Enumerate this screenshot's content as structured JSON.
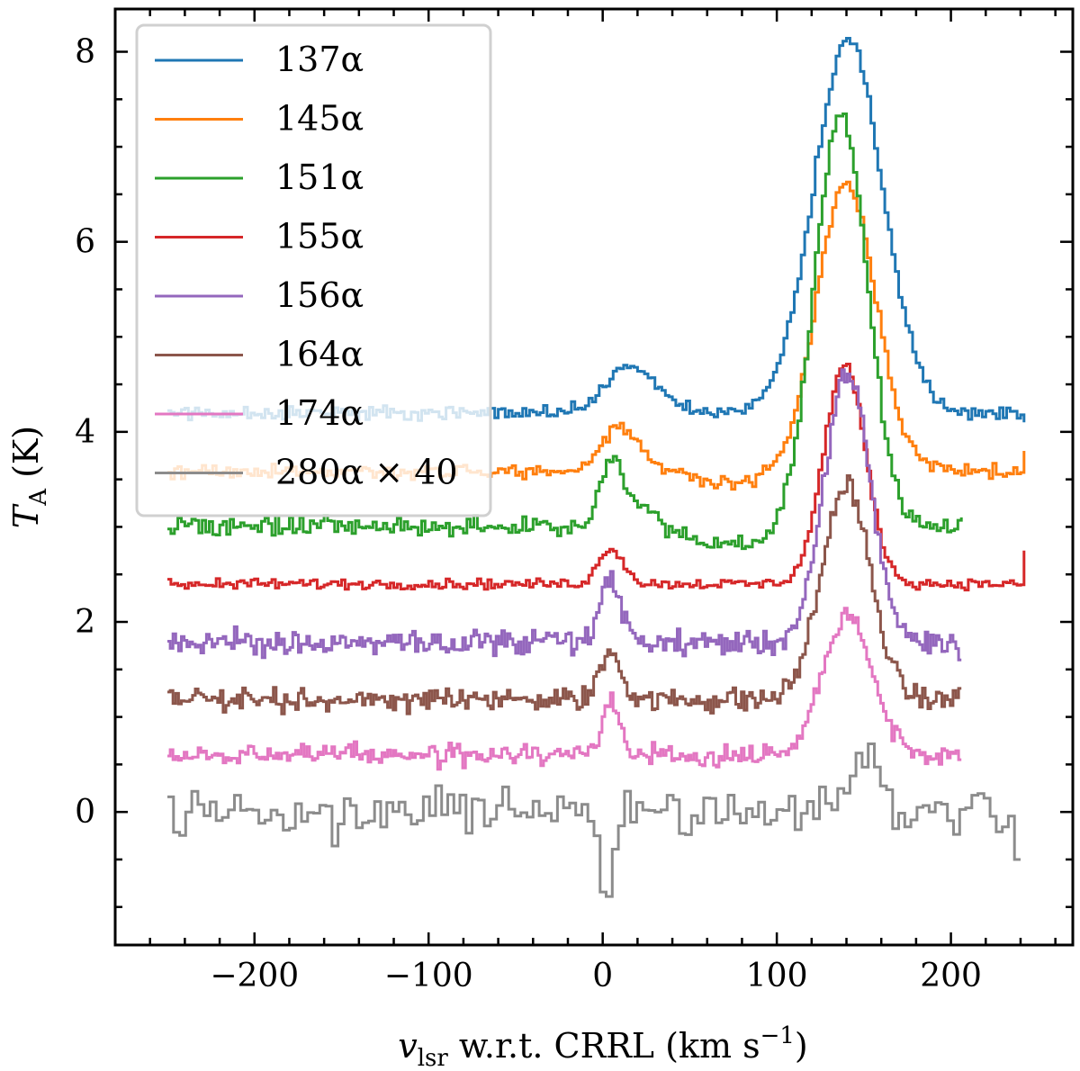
{
  "chart_data": {
    "type": "line",
    "title": "",
    "xlabel": "v_lsr w.r.t. CRRL (km s^-1)",
    "xlabel_parts": {
      "main": "v",
      "sub": "lsr",
      "rest": " w.r.t. CRRL (km s",
      "sup": "−1",
      "close": ")"
    },
    "ylabel": "T_A (K)",
    "ylabel_parts": {
      "main": "T",
      "sub": "A",
      "rest": " (K)"
    },
    "xlim": [
      -280,
      270
    ],
    "ylim": [
      -1.4,
      8.45
    ],
    "xticks": [
      -200,
      -100,
      0,
      100,
      200
    ],
    "xtick_labels": [
      "−200",
      "−100",
      "0",
      "100",
      "200"
    ],
    "yticks": [
      0,
      2,
      4,
      6,
      8
    ],
    "ytick_labels": [
      "0",
      "2",
      "4",
      "6",
      "8"
    ],
    "legend_position": "upper-left",
    "series": [
      {
        "name": "137α",
        "color": "#1f77b4",
        "baseline": 4.2,
        "noise": 0.07,
        "x_range": [
          -250,
          243
        ],
        "features": [
          {
            "center": 140,
            "sigma": 20,
            "amp": 3.9
          },
          {
            "center": 15,
            "sigma": 14,
            "amp": 0.5
          }
        ],
        "step": 2,
        "end_value": 4.1
      },
      {
        "name": "145α",
        "color": "#ff7f0e",
        "baseline": 3.58,
        "noise": 0.07,
        "x_range": [
          -250,
          243
        ],
        "features": [
          {
            "center": 139,
            "sigma": 17,
            "amp": 3.05
          },
          {
            "center": 8,
            "sigma": 10,
            "amp": 0.42
          },
          {
            "center": 25,
            "sigma": 15,
            "amp": 0.1
          }
        ],
        "dip": {
          "center": 70,
          "sigma": 25,
          "amp": -0.12
        },
        "step": 2,
        "end_value": 3.8
      },
      {
        "name": "151α",
        "color": "#2ca02c",
        "baseline": 3.0,
        "noise": 0.1,
        "x_range": [
          -250,
          207
        ],
        "features": [
          {
            "center": 136,
            "sigma": 15,
            "amp": 4.35
          },
          {
            "center": 4,
            "sigma": 7,
            "amp": 0.65
          },
          {
            "center": 22,
            "sigma": 10,
            "amp": 0.2
          }
        ],
        "dip": {
          "center": 75,
          "sigma": 22,
          "amp": -0.2
        },
        "step": 2,
        "end_value": 3.1
      },
      {
        "name": "155α",
        "color": "#d62728",
        "baseline": 2.4,
        "noise": 0.05,
        "x_range": [
          -250,
          243
        ],
        "features": [
          {
            "center": 138,
            "sigma": 12,
            "amp": 2.3
          },
          {
            "center": 4,
            "sigma": 7,
            "amp": 0.38
          }
        ],
        "step": 2,
        "end_value": 2.75
      },
      {
        "name": "156α",
        "color": "#9467bd",
        "baseline": 1.78,
        "noise": 0.13,
        "x_range": [
          -250,
          206
        ],
        "features": [
          {
            "center": 140,
            "sigma": 13,
            "amp": 2.85
          },
          {
            "center": 4,
            "sigma": 6,
            "amp": 0.65
          }
        ],
        "step": 1.6,
        "end_value": 1.6
      },
      {
        "name": "164α",
        "color": "#8c564b",
        "baseline": 1.18,
        "noise": 0.12,
        "x_range": [
          -250,
          206
        ],
        "features": [
          {
            "center": 139,
            "sigma": 14,
            "amp": 2.25
          },
          {
            "center": 4,
            "sigma": 6,
            "amp": 0.52
          }
        ],
        "step": 1.6,
        "end_value": 1.3
      },
      {
        "name": "174α",
        "color": "#e377c2",
        "baseline": 0.6,
        "noise": 0.1,
        "x_range": [
          -250,
          206
        ],
        "features": [
          {
            "center": 140,
            "sigma": 14,
            "amp": 1.5
          },
          {
            "center": 4,
            "sigma": 5,
            "amp": 0.58
          }
        ],
        "step": 1.6,
        "end_value": 0.55
      },
      {
        "name": "280α × 40",
        "color": "#8c8c8c",
        "baseline": 0.0,
        "noise": 0.22,
        "x_range": [
          -250,
          240
        ],
        "features": [
          {
            "center": 148,
            "sigma": 10,
            "amp": 0.45
          }
        ],
        "dip": {
          "center": 1,
          "sigma": 4,
          "amp": -1.0
        },
        "step": 3.5,
        "end_value": -0.5
      }
    ]
  }
}
